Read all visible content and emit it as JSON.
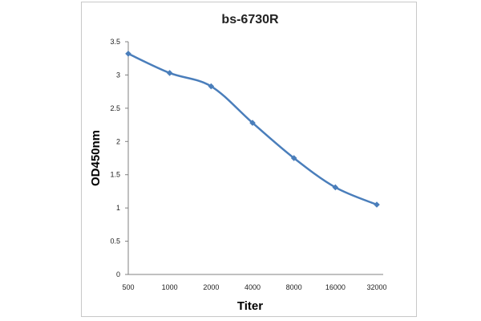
{
  "colors": {
    "line": "#4a7ebb",
    "marker": "#4a7ebb",
    "axis": "#808080",
    "frame": "#c8c8c8"
  },
  "chart_data": {
    "type": "line",
    "title": "bs-6730R",
    "xlabel": "Titer",
    "ylabel": "OD450nm",
    "categories": [
      "500",
      "1000",
      "2000",
      "4000",
      "8000",
      "16000",
      "32000"
    ],
    "series": [
      {
        "name": "bs-6730R",
        "values": [
          3.32,
          3.03,
          2.83,
          2.28,
          1.75,
          1.31,
          1.05
        ]
      }
    ],
    "ylim": [
      0,
      3.5
    ],
    "yticks": [
      "0",
      "0.5",
      "1",
      "1.5",
      "2",
      "2.5",
      "3",
      "3.5"
    ],
    "grid": false,
    "legend": "none"
  }
}
